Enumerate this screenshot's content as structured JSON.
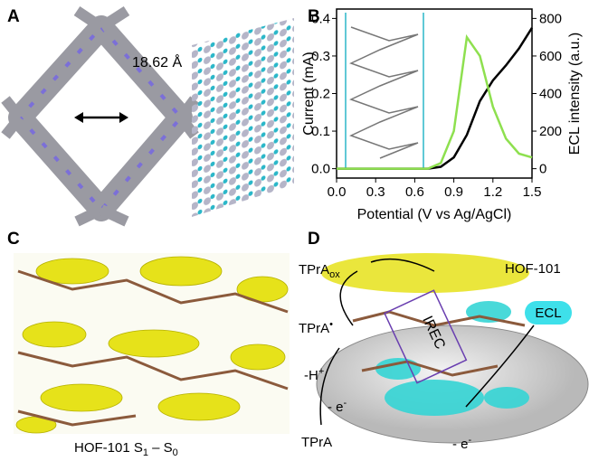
{
  "panels": {
    "a": {
      "label": "A",
      "distance": "18.62 Å"
    },
    "b": {
      "label": "B"
    },
    "c": {
      "label": "C",
      "caption": [
        "HOF-101 S",
        "1",
        " – S",
        "0"
      ]
    },
    "d": {
      "label": "D",
      "tpra_ox": [
        "TPrA",
        "ox"
      ],
      "hof": "HOF-101",
      "tpra_radical": [
        "TPrA",
        "•"
      ],
      "ecl": "ECL",
      "deprot": [
        "-H",
        "+"
      ],
      "e1": [
        "- e",
        "-"
      ],
      "tpra": "TPrA",
      "e2": [
        "- e",
        "-"
      ],
      "irec": "IREC"
    }
  },
  "chart_data": {
    "type": "line",
    "x": [
      0,
      0.1,
      0.2,
      0.3,
      0.4,
      0.5,
      0.6,
      0.7,
      0.8,
      0.9,
      1.0,
      1.1,
      1.2,
      1.3,
      1.4,
      1.5
    ],
    "x_label": "Potential (V vs Ag/AgCl)",
    "y_label": "Current (mA)",
    "y2_label": "ECL intensity (a.u.)",
    "series": [
      {
        "color": "#000000",
        "values": [
          0,
          0,
          0,
          0,
          0,
          0,
          0,
          0,
          0.005,
          0.03,
          0.09,
          0.18,
          0.235,
          0.275,
          0.32,
          0.375
        ]
      },
      {
        "color": "#8ee04f",
        "axis": "y2",
        "values": [
          0,
          0,
          0,
          0,
          0,
          0,
          0,
          0,
          30,
          200,
          700,
          600,
          330,
          160,
          80,
          60
        ]
      }
    ],
    "xlim": [
      0,
      1.5
    ],
    "xticks": [
      {
        "value": 0,
        "label": "0.0"
      },
      0.3,
      0.6,
      0.9,
      1.2,
      1.5
    ],
    "ylim": [
      -0.025,
      0.425
    ],
    "yticks": [
      {
        "value": 0,
        "label": "0.0"
      },
      0.1,
      0.2,
      0.3,
      0.4
    ],
    "y2lim": [
      -50,
      850
    ],
    "y2ticks": [
      0,
      200,
      400,
      600,
      800
    ]
  }
}
